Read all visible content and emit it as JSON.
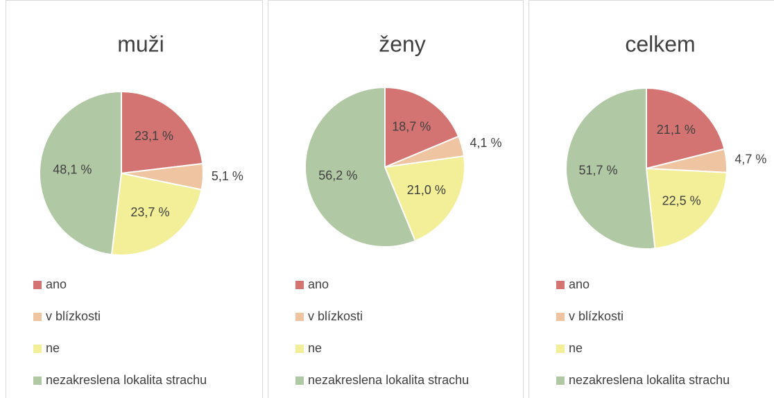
{
  "chart_data": [
    {
      "type": "pie",
      "title": "muži",
      "categories": [
        "ano",
        "v blízkosti",
        "ne",
        "nezakreslena lokalita strachu"
      ],
      "values": [
        23.1,
        5.1,
        23.7,
        48.1
      ],
      "value_labels": [
        "23,1 %",
        "5,1 %",
        "23,7 %",
        "48,1 %"
      ],
      "colors": [
        "#d47472",
        "#eec4a1",
        "#f2ef98",
        "#b0c8a4"
      ]
    },
    {
      "type": "pie",
      "title": "ženy",
      "categories": [
        "ano",
        "v blízkosti",
        "ne",
        "nezakreslena lokalita strachu"
      ],
      "values": [
        18.7,
        4.1,
        21.0,
        56.2
      ],
      "value_labels": [
        "18,7 %",
        "4,1 %",
        "21,0 %",
        "56,2 %"
      ],
      "colors": [
        "#d47472",
        "#eec4a1",
        "#f2ef98",
        "#b0c8a4"
      ]
    },
    {
      "type": "pie",
      "title": "celkem",
      "categories": [
        "ano",
        "v blízkosti",
        "ne",
        "nezakreslena lokalita strachu"
      ],
      "values": [
        21.1,
        4.7,
        22.5,
        51.7
      ],
      "value_labels": [
        "21,1 %",
        "4,7 %",
        "22,5 %",
        "51,7 %"
      ],
      "colors": [
        "#d47472",
        "#eec4a1",
        "#f2ef98",
        "#b0c8a4"
      ]
    }
  ]
}
